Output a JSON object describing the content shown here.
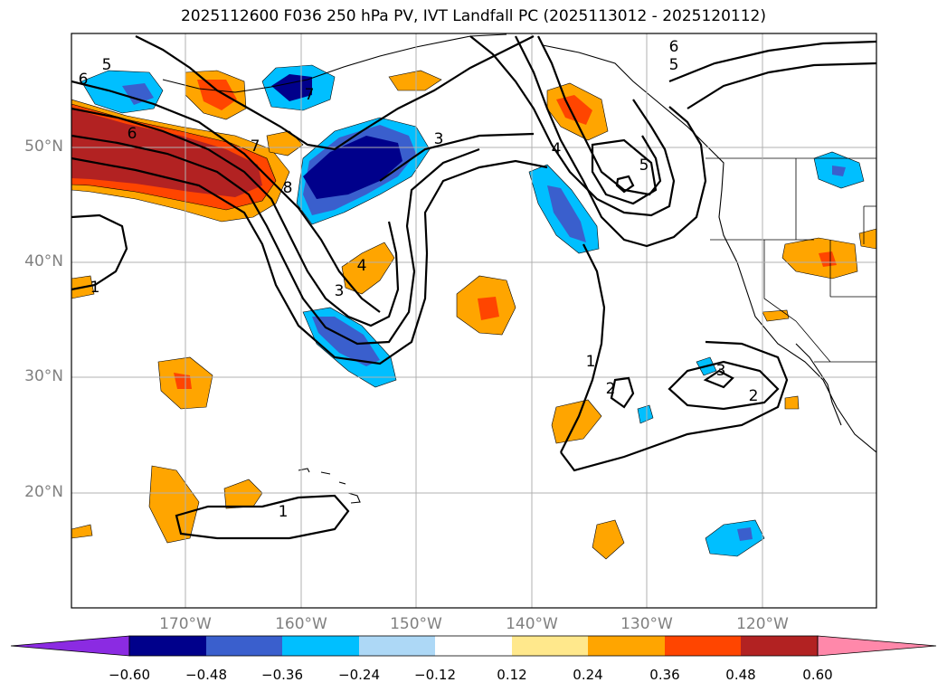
{
  "map": {
    "title": "2025112600 F036 250 hPa PV, IVT Landfall PC (2025113012 - 2025120112)",
    "lat_labels": [
      "50°N",
      "40°N",
      "30°N",
      "20°N"
    ],
    "lon_labels": [
      "170°W",
      "160°W",
      "150°W",
      "140°W",
      "130°W",
      "120°W"
    ],
    "contour_labels": [
      "1",
      "1",
      "1",
      "2",
      "2",
      "3",
      "3",
      "3",
      "4",
      "4",
      "5",
      "5",
      "5",
      "6",
      "6",
      "6",
      "7",
      "7",
      "8"
    ]
  },
  "colorbar": {
    "labels": [
      "−0.60",
      "−0.48",
      "−0.36",
      "−0.24",
      "−0.12",
      "0.12",
      "0.24",
      "0.36",
      "0.48",
      "0.60"
    ],
    "colors": [
      "#8b2be2",
      "#00008b",
      "#3a5fcd",
      "#00bfff",
      "#add8f6",
      "#ffffff",
      "#ffe88c",
      "#ffa500",
      "#ff4500",
      "#b22222",
      "#ff88aa"
    ]
  }
}
